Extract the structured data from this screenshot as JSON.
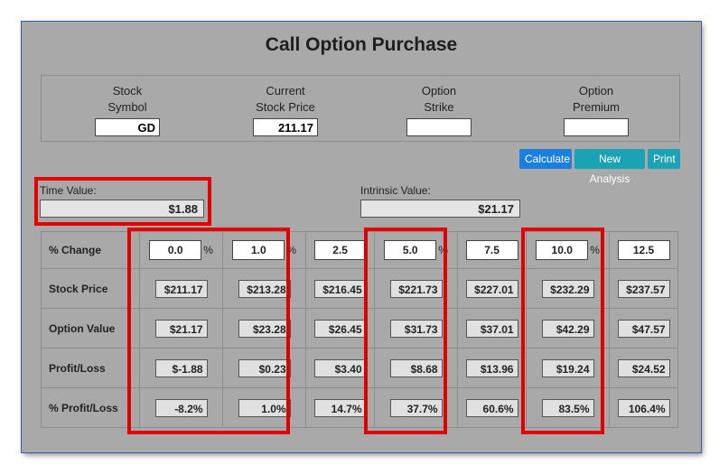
{
  "title": "Call Option Purchase",
  "inputs": {
    "symbol": {
      "label1": "Stock",
      "label2": "Symbol",
      "value": "GD"
    },
    "price": {
      "label1": "Current",
      "label2": "Stock Price",
      "value": "211.17"
    },
    "strike": {
      "label1": "Option",
      "label2": "Strike",
      "value": ""
    },
    "premium": {
      "label1": "Option",
      "label2": "Premium",
      "value": ""
    }
  },
  "buttons": {
    "calculate": "Calculate",
    "new_analysis": "New Analysis",
    "print": "Print"
  },
  "time_value": {
    "label": "Time Value:",
    "value": "$1.88"
  },
  "intrinsic_value": {
    "label": "Intrinsic Value:",
    "value": "$21.17"
  },
  "grid": {
    "row_labels": {
      "change": "% Change",
      "stock_price": "Stock Price",
      "option_value": "Option Value",
      "profit_loss": "Profit/Loss",
      "pct_profit_loss": "% Profit/Loss"
    },
    "pct_sign": "%",
    "columns": [
      {
        "change": "0.0",
        "stock_price": "$211.17",
        "option_value": "$21.17",
        "profit_loss": "$-1.88",
        "pct_profit_loss": "-8.2%"
      },
      {
        "change": "1.0",
        "stock_price": "$213.28",
        "option_value": "$23.28",
        "profit_loss": "$0.23",
        "pct_profit_loss": "1.0%"
      },
      {
        "change": "2.5",
        "stock_price": "$216.45",
        "option_value": "$26.45",
        "profit_loss": "$3.40",
        "pct_profit_loss": "14.7%"
      },
      {
        "change": "5.0",
        "stock_price": "$221.73",
        "option_value": "$31.73",
        "profit_loss": "$8.68",
        "pct_profit_loss": "37.7%"
      },
      {
        "change": "7.5",
        "stock_price": "$227.01",
        "option_value": "$37.01",
        "profit_loss": "$13.96",
        "pct_profit_loss": "60.6%"
      },
      {
        "change": "10.0",
        "stock_price": "$232.29",
        "option_value": "$42.29",
        "profit_loss": "$19.24",
        "pct_profit_loss": "83.5%"
      },
      {
        "change": "12.5",
        "stock_price": "$237.57",
        "option_value": "$47.57",
        "profit_loss": "$24.52",
        "pct_profit_loss": "106.4%"
      }
    ]
  },
  "colors": {
    "highlight": "#e30000",
    "button_primary": "#1a7fe0",
    "button_secondary": "#1ba3b5",
    "panel": "#a9a9a9"
  }
}
